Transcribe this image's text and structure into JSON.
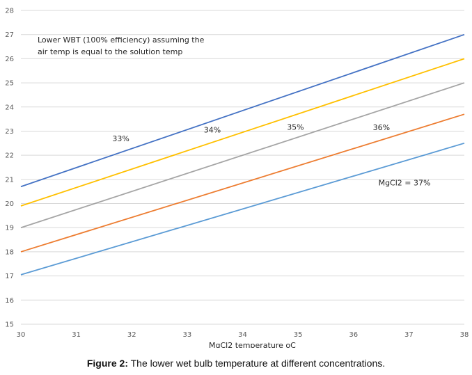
{
  "chart_data": {
    "type": "line",
    "title": "",
    "xlabel": "MgCl2 temperature oC",
    "ylabel": "",
    "xlim": [
      30,
      38
    ],
    "ylim": [
      15,
      28
    ],
    "x_ticks": [
      30,
      31,
      32,
      33,
      34,
      35,
      36,
      37,
      38
    ],
    "y_ticks": [
      15,
      16,
      17,
      18,
      19,
      20,
      21,
      22,
      23,
      24,
      25,
      26,
      27,
      28
    ],
    "grid": "horizontal",
    "annotation": [
      "Lower WBT (100% efficiency) assuming the",
      "air temp is equal to the solution temp"
    ],
    "series": [
      {
        "name": "33%",
        "color": "#4472c4",
        "x": [
          30,
          38
        ],
        "y": [
          20.7,
          27.0
        ]
      },
      {
        "name": "34%",
        "color": "#ffc000",
        "x": [
          30,
          38
        ],
        "y": [
          19.9,
          26.0
        ]
      },
      {
        "name": "35%",
        "color": "#a5a5a5",
        "x": [
          30,
          38
        ],
        "y": [
          19.0,
          25.0
        ]
      },
      {
        "name": "36%",
        "color": "#ed7d31",
        "x": [
          30,
          38
        ],
        "y": [
          18.0,
          23.7
        ]
      },
      {
        "name": "MgCl2 = 37%",
        "color": "#5b9bd5",
        "x": [
          30,
          38
        ],
        "y": [
          17.05,
          22.5
        ]
      }
    ]
  },
  "caption": {
    "label": "Figure 2:",
    "text": " The lower wet bulb temperature at different concentrations."
  }
}
